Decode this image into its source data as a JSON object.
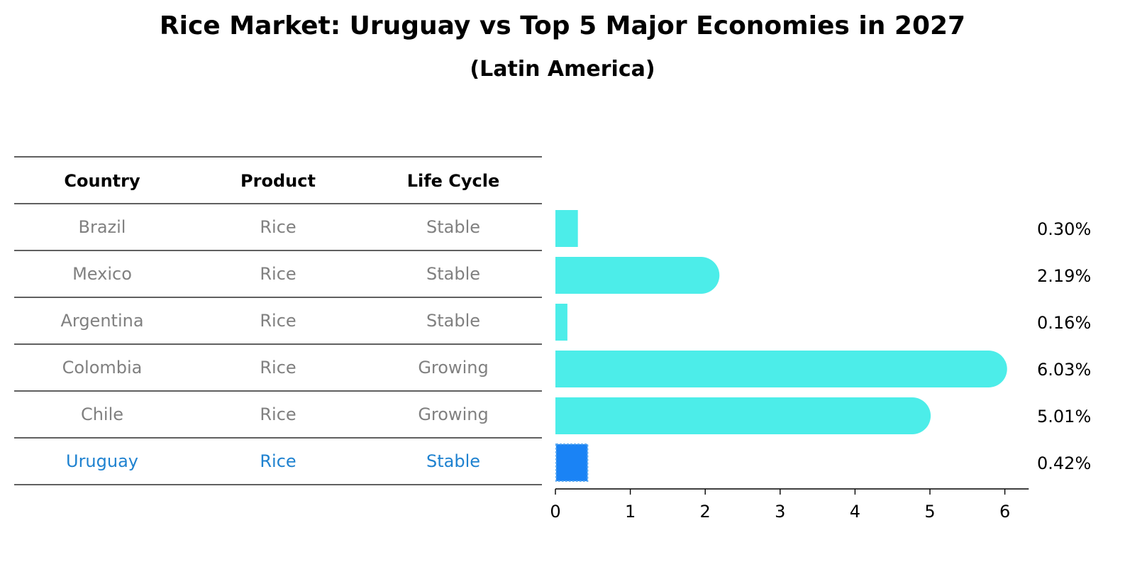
{
  "title": "Rice Market: Uruguay vs Top 5 Major Economies in 2027",
  "subtitle": "(Latin America)",
  "table": {
    "headers": [
      "Country",
      "Product",
      "Life Cycle"
    ],
    "rows": [
      {
        "country": "Brazil",
        "product": "Rice",
        "life_cycle": "Stable",
        "highlight": false
      },
      {
        "country": "Mexico",
        "product": "Rice",
        "life_cycle": "Stable",
        "highlight": false
      },
      {
        "country": "Argentina",
        "product": "Rice",
        "life_cycle": "Stable",
        "highlight": false
      },
      {
        "country": "Colombia",
        "product": "Rice",
        "life_cycle": "Growing",
        "highlight": false
      },
      {
        "country": "Chile",
        "product": "Rice",
        "life_cycle": "Growing",
        "highlight": false
      },
      {
        "country": "Uruguay",
        "product": "Rice",
        "life_cycle": "Stable",
        "highlight": true
      }
    ]
  },
  "colors": {
    "bar": "#4cede9",
    "highlight_bar": "#1a83f5",
    "highlight_text": "#1f82d0",
    "muted_text": "#808080",
    "text": "#000000"
  },
  "chart_data": {
    "type": "bar",
    "orientation": "horizontal",
    "categories": [
      "Brazil",
      "Mexico",
      "Argentina",
      "Colombia",
      "Chile",
      "Uruguay"
    ],
    "values": [
      0.3,
      2.19,
      0.16,
      6.03,
      5.01,
      0.42
    ],
    "value_labels": [
      "0.30%",
      "2.19%",
      "0.16%",
      "6.03%",
      "5.01%",
      "0.42%"
    ],
    "highlight": "Uruguay",
    "xlim": [
      0,
      6.3
    ],
    "xticks": [
      0,
      1,
      2,
      3,
      4,
      5,
      6
    ],
    "grid": false,
    "legend": "none"
  }
}
